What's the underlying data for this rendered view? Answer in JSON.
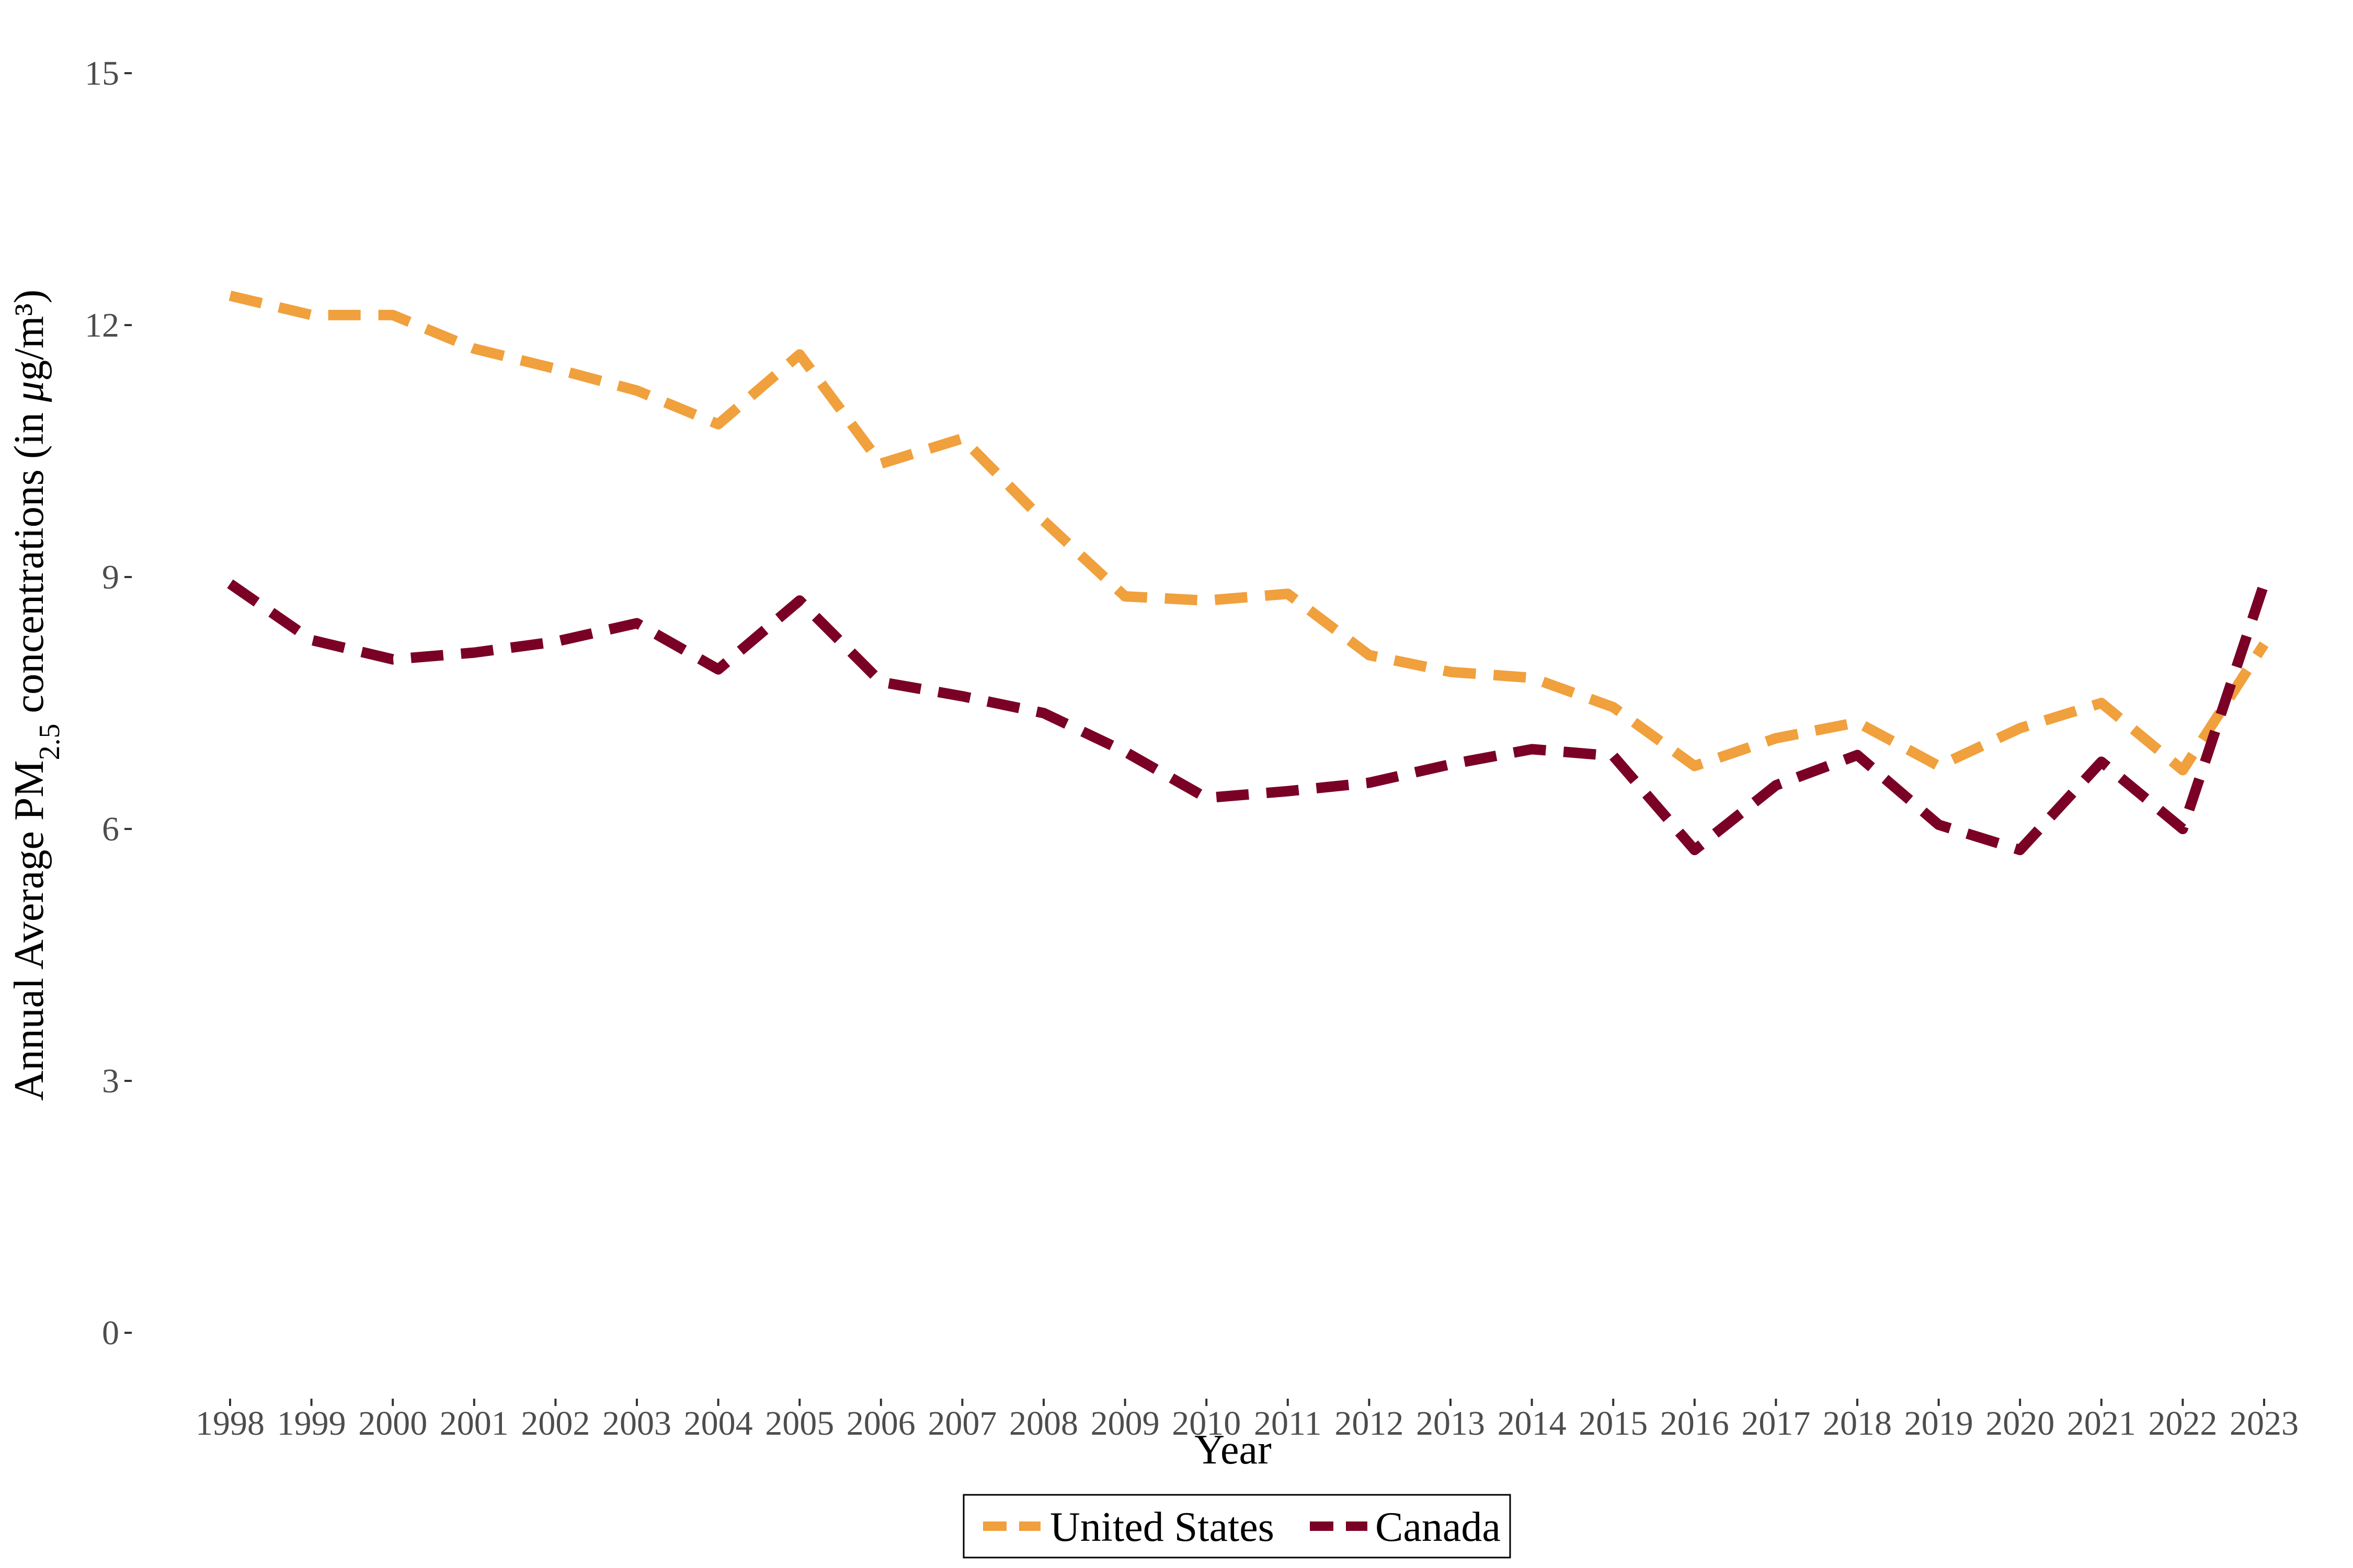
{
  "chart_data": {
    "type": "line",
    "title": "",
    "xlabel": "Year",
    "ylabel": {
      "prefix": "Annual Average  PM",
      "subscript": "2.5",
      "suffix": " concentrations (in ",
      "mu": "μ",
      "unit": "g/m³)"
    },
    "x": [
      "1998",
      "1999",
      "2000",
      "2001",
      "2002",
      "2003",
      "2004",
      "2005",
      "2006",
      "2007",
      "2008",
      "2009",
      "2010",
      "2011",
      "2012",
      "2013",
      "2014",
      "2015",
      "2016",
      "2017",
      "2018",
      "2019",
      "2020",
      "2021",
      "2022",
      "2023"
    ],
    "ylim": [
      0,
      15
    ],
    "yticks": [
      0,
      3,
      6,
      9,
      12,
      15
    ],
    "ytick_labels": [
      "0",
      "3",
      "6",
      "9",
      "12",
      "15"
    ],
    "grid": false,
    "legend_position": "bottom",
    "series": [
      {
        "name": "United States",
        "color": "#F0A03C",
        "line_style": "dashed",
        "values": [
          12.35,
          12.12,
          12.12,
          11.72,
          11.48,
          11.22,
          10.82,
          11.65,
          10.35,
          10.65,
          9.67,
          8.77,
          8.72,
          8.8,
          8.07,
          7.87,
          7.8,
          7.45,
          6.75,
          7.08,
          7.27,
          6.75,
          7.2,
          7.5,
          6.7,
          8.2
        ]
      },
      {
        "name": "Canada",
        "color": "#7A0026",
        "line_style": "dashed",
        "values": [
          8.92,
          8.25,
          8.02,
          8.1,
          8.23,
          8.45,
          7.9,
          8.72,
          7.75,
          7.58,
          7.38,
          6.92,
          6.37,
          6.45,
          6.55,
          6.77,
          6.95,
          6.87,
          5.75,
          6.52,
          6.88,
          6.05,
          5.75,
          6.8,
          6.0,
          8.92
        ]
      }
    ]
  }
}
